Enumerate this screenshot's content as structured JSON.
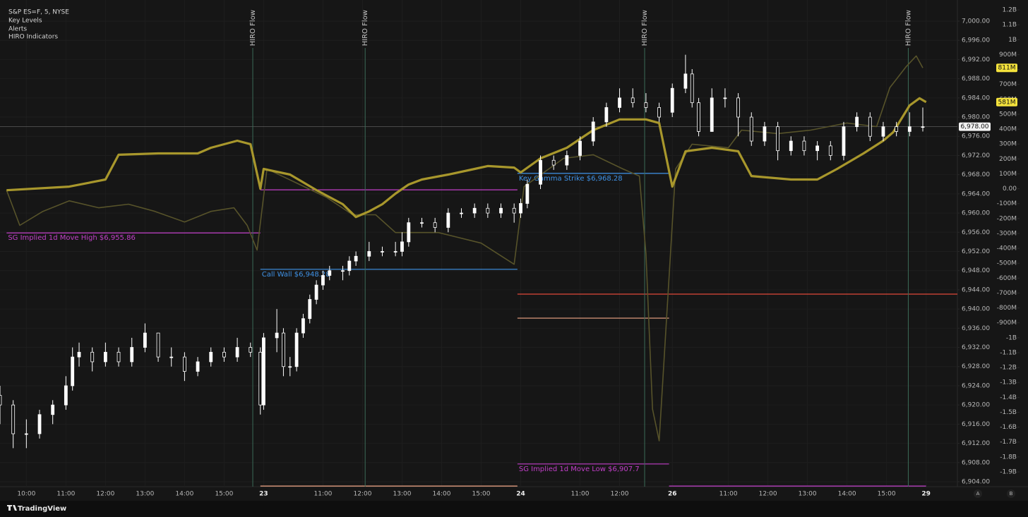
{
  "chart_data": {
    "type": "candlestick",
    "indicators": [
      "Key Levels",
      "Alerts",
      "HIRO Indicators"
    ],
    "grid": true,
    "xlim": [
      0,
      290.5
    ],
    "xticks": [
      {
        "value": 8,
        "label": "10:00"
      },
      {
        "value": 20,
        "label": "11:00"
      },
      {
        "value": 32,
        "label": "12:00"
      },
      {
        "value": 44,
        "label": "13:00"
      },
      {
        "value": 56,
        "label": "14:00"
      },
      {
        "value": 68,
        "label": "15:00"
      },
      {
        "value": 80,
        "label": "23"
      },
      {
        "value": 98,
        "label": "11:00"
      },
      {
        "value": 110,
        "label": "12:00"
      },
      {
        "value": 122,
        "label": "13:00"
      },
      {
        "value": 134,
        "label": "14:00"
      },
      {
        "value": 146,
        "label": "15:00"
      },
      {
        "value": 158,
        "label": "24"
      },
      {
        "value": 176,
        "label": "11:00"
      },
      {
        "value": 188,
        "label": "12:00"
      },
      {
        "value": 204,
        "label": "26"
      },
      {
        "value": 221,
        "label": "11:00"
      },
      {
        "value": 233,
        "label": "12:00"
      },
      {
        "value": 245,
        "label": "13:00"
      },
      {
        "value": 257,
        "label": "14:00"
      },
      {
        "value": 269,
        "label": "15:00"
      },
      {
        "value": 281,
        "label": "29"
      }
    ],
    "ylim": [
      6902.97,
      7004.41
    ],
    "yticks": [
      {
        "value": 6904,
        "label": "6,904.00"
      },
      {
        "value": 6908,
        "label": "6,908.00"
      },
      {
        "value": 6912,
        "label": "6,912.00"
      },
      {
        "value": 6916,
        "label": "6,916.00"
      },
      {
        "value": 6920,
        "label": "6,920.00"
      },
      {
        "value": 6924,
        "label": "6,924.00"
      },
      {
        "value": 6928,
        "label": "6,928.00"
      },
      {
        "value": 6932,
        "label": "6,932.00"
      },
      {
        "value": 6936,
        "label": "6,936.00"
      },
      {
        "value": 6940,
        "label": "6,940.00"
      },
      {
        "value": 6944,
        "label": "6,944.00"
      },
      {
        "value": 6948,
        "label": "6,948.00"
      },
      {
        "value": 6952,
        "label": "6,952.00"
      },
      {
        "value": 6956,
        "label": "6,956.00"
      },
      {
        "value": 6960,
        "label": "6,960.00"
      },
      {
        "value": 6964,
        "label": "6,964.00"
      },
      {
        "value": 6968,
        "label": "6,968.00"
      },
      {
        "value": 6972,
        "label": "6,972.00"
      },
      {
        "value": 6976,
        "label": "6,976.00"
      },
      {
        "value": 6980,
        "label": "6,980.00"
      },
      {
        "value": 6984,
        "label": "6,984.00"
      },
      {
        "value": 6988,
        "label": "6,988.00"
      },
      {
        "value": 6992,
        "label": "6,992.00"
      },
      {
        "value": 6996,
        "label": "6,996.00"
      },
      {
        "value": 7000,
        "label": "7,000.00"
      }
    ],
    "y2lim": [
      -1999.5,
      1266.4
    ],
    "y2ticks": [
      {
        "value": 1200,
        "label": "1.2B"
      },
      {
        "value": 1100,
        "label": "1.1B"
      },
      {
        "value": 1000,
        "label": "1B"
      },
      {
        "value": 900,
        "label": "900M"
      },
      {
        "value": 800,
        "label": "800M"
      },
      {
        "value": 700,
        "label": "700M"
      },
      {
        "value": 600,
        "label": "600M"
      },
      {
        "value": 500,
        "label": "500M"
      },
      {
        "value": 400,
        "label": "400M"
      },
      {
        "value": 300,
        "label": "300M"
      },
      {
        "value": 200,
        "label": "200M"
      },
      {
        "value": 100,
        "label": "100M"
      },
      {
        "value": 0,
        "label": "0.00"
      },
      {
        "value": -100,
        "label": "-100M"
      },
      {
        "value": -200,
        "label": "-200M"
      },
      {
        "value": -300,
        "label": "-300M"
      },
      {
        "value": -400,
        "label": "-400M"
      },
      {
        "value": -500,
        "label": "-500M"
      },
      {
        "value": -600,
        "label": "-600M"
      },
      {
        "value": -700,
        "label": "-700M"
      },
      {
        "value": -800,
        "label": "-800M"
      },
      {
        "value": -900,
        "label": "-900M"
      },
      {
        "value": -1000,
        "label": "-1B"
      },
      {
        "value": -1100,
        "label": "-1.1B"
      },
      {
        "value": -1200,
        "label": "-1.2B"
      },
      {
        "value": -1300,
        "label": "-1.3B"
      },
      {
        "value": -1400,
        "label": "-1.4B"
      },
      {
        "value": -1500,
        "label": "-1.5B"
      },
      {
        "value": -1600,
        "label": "-1.6B"
      },
      {
        "value": -1700,
        "label": "-1.7B"
      },
      {
        "value": -1800,
        "label": "-1.8B"
      },
      {
        "value": -1900,
        "label": "-1.9B"
      }
    ],
    "series": [
      {
        "type": "line",
        "axis": "y2",
        "color": "#57532a",
        "x": [
          2,
          6,
          13,
          21,
          30,
          39,
          47,
          56,
          64,
          71,
          75,
          78,
          81,
          90,
          99,
          107,
          114,
          120,
          133,
          146,
          156,
          159,
          171,
          180,
          189,
          194,
          196,
          198,
          200,
          205,
          210,
          221,
          225,
          236,
          246,
          257,
          266,
          270,
          275,
          278,
          280
        ],
        "values": [
          -10,
          -246,
          -152,
          -81,
          -128,
          -104,
          -152,
          -223,
          -152,
          -128,
          -246,
          -412,
          133,
          38,
          -57,
          -175,
          -175,
          -294,
          -294,
          -365,
          -507,
          14,
          204,
          228,
          133,
          85,
          -436,
          -1479,
          -1692,
          133,
          299,
          275,
          393,
          370,
          393,
          441,
          417,
          678,
          820,
          891,
          811
        ]
      },
      {
        "type": "line",
        "axis": "y2",
        "color": "#a8972c",
        "x": [
          2,
          21,
          32,
          36,
          48,
          60,
          64,
          72,
          76,
          79,
          80,
          88,
          96,
          104,
          108,
          112,
          116,
          120,
          124,
          128,
          136,
          144,
          148,
          156,
          158,
          164,
          172,
          180,
          188,
          196,
          200,
          204,
          208,
          216,
          224,
          228,
          240,
          248,
          254,
          262,
          268,
          271,
          276,
          279,
          281
        ],
        "values": [
          -10,
          14,
          62,
          228,
          237,
          237,
          275,
          322,
          299,
          0,
          133,
          95,
          -9,
          -104,
          -190,
          -152,
          -104,
          -33,
          28,
          62,
          95,
          133,
          152,
          142,
          109,
          204,
          275,
          393,
          465,
          465,
          441,
          14,
          251,
          275,
          251,
          85,
          62,
          62,
          133,
          237,
          322,
          379,
          559,
          607,
          581
        ]
      },
      {
        "type": "candlestick",
        "name": "S&P ES=F, 5, NYSE",
        "color": "#ffffff",
        "x": [
          0,
          4,
          8,
          12,
          16,
          20,
          22,
          24,
          28,
          32,
          36,
          40,
          44,
          48,
          52,
          56,
          60,
          64,
          68,
          72,
          76,
          79,
          80,
          84,
          86,
          88,
          90,
          92,
          94,
          96,
          98,
          100,
          104,
          106,
          108,
          112,
          116,
          120,
          122,
          124,
          128,
          132,
          136,
          140,
          144,
          148,
          152,
          156,
          158,
          160,
          164,
          168,
          172,
          176,
          180,
          184,
          188,
          192,
          196,
          200,
          204,
          208,
          210,
          212,
          216,
          220,
          224,
          228,
          232,
          236,
          240,
          244,
          248,
          252,
          256,
          260,
          264,
          268,
          272,
          276,
          280
        ],
        "open": [
          6922,
          6920,
          6914,
          6914,
          6918,
          6920,
          6924,
          6930,
          6931,
          6929,
          6931,
          6929,
          6932,
          6935,
          6930,
          6930,
          6927,
          6929,
          6931,
          6930,
          6932,
          6931,
          6920,
          6934,
          6935,
          6928,
          6928,
          6935,
          6938,
          6942,
          6945,
          6947,
          6948,
          6948,
          6950,
          6951,
          6952,
          6952,
          6952,
          6954,
          6958,
          6958,
          6957,
          6960,
          6960,
          6961,
          6960,
          6961,
          6960,
          6962,
          6966,
          6971,
          6970,
          6972,
          6975,
          6979,
          6982,
          6984,
          6983,
          6982,
          6981,
          6986,
          6989,
          6983,
          6977,
          6984,
          6984,
          6980,
          6975,
          6978,
          6973,
          6975,
          6973,
          6974,
          6972,
          6978,
          6980,
          6976,
          6978,
          6977,
          6978
        ],
        "high": [
          6924,
          6921,
          6917,
          6919,
          6921,
          6926,
          6932,
          6933,
          6932,
          6933,
          6932,
          6934,
          6937,
          6935,
          6932,
          6931,
          6930,
          6932,
          6932,
          6934,
          6933,
          6932,
          6935,
          6940,
          6936,
          6930,
          6936,
          6939,
          6943,
          6946,
          6948,
          6949,
          6949,
          6951,
          6952,
          6954,
          6953,
          6954,
          6956,
          6959,
          6959,
          6959,
          6961,
          6961,
          6962,
          6962,
          6962,
          6962,
          6963,
          6967,
          6972,
          6972,
          6973,
          6976,
          6980,
          6983,
          6986,
          6986,
          6985,
          6983,
          6987,
          6993,
          6990,
          6984,
          6986,
          6986,
          6985,
          6981,
          6979,
          6979,
          6976,
          6976,
          6975,
          6975,
          6979,
          6981,
          6981,
          6979,
          6979,
          6981,
          6982
        ],
        "low": [
          6916,
          6911,
          6911,
          6913,
          6916,
          6919,
          6923,
          6928,
          6927,
          6928,
          6928,
          6928,
          6931,
          6929,
          6928,
          6925,
          6926,
          6928,
          6929,
          6929,
          6930,
          6918,
          6919,
          6931,
          6926,
          6926,
          6927,
          6934,
          6937,
          6941,
          6944,
          6946,
          6946,
          6947,
          6949,
          6950,
          6951,
          6951,
          6951,
          6953,
          6957,
          6956,
          6956,
          6959,
          6959,
          6959,
          6959,
          6958,
          6959,
          6961,
          6965,
          6969,
          6969,
          6971,
          6974,
          6978,
          6981,
          6982,
          6981,
          6979,
          6980,
          6985,
          6982,
          6976,
          6977,
          6982,
          6976,
          6974,
          6974,
          6971,
          6972,
          6972,
          6971,
          6971,
          6971,
          6977,
          6975,
          6975,
          6976,
          6976,
          6977
        ],
        "close": [
          6920,
          6914,
          6914,
          6918,
          6920,
          6924,
          6930,
          6931,
          6929,
          6931,
          6929,
          6932,
          6935,
          6930,
          6930,
          6927,
          6929,
          6931,
          6930,
          6932,
          6931,
          6920,
          6934,
          6935,
          6928,
          6928,
          6935,
          6938,
          6942,
          6945,
          6947,
          6948,
          6948,
          6950,
          6951,
          6952,
          6952,
          6952,
          6954,
          6958,
          6958,
          6957,
          6960,
          6960,
          6961,
          6960,
          6961,
          6960,
          6962,
          6966,
          6971,
          6970,
          6972,
          6975,
          6979,
          6982,
          6984,
          6983,
          6982,
          6980,
          6986,
          6989,
          6983,
          6977,
          6984,
          6984,
          6980,
          6975,
          6978,
          6973,
          6975,
          6973,
          6974,
          6972,
          6978,
          6980,
          6976,
          6978,
          6977,
          6978,
          6978
        ]
      }
    ],
    "levels": [
      {
        "label": "SG Implied 1d Move High $6,955.86",
        "value": 6955.86,
        "x": [
          2,
          79
        ],
        "color": "#c23fc9"
      },
      {
        "label": "Call Wall $6,948.28",
        "value": 6948.28,
        "x": [
          79,
          157
        ],
        "color": "#3f93e8"
      },
      {
        "label": "Key Gamma Strike $6,968.28",
        "value": 6968.28,
        "x": [
          157,
          203
        ],
        "color": "#3f93e8"
      },
      {
        "label": "SG Implied 1d Move Low $6,907.7",
        "value": 6907.7,
        "x": [
          157,
          203
        ],
        "color": "#c23fc9"
      },
      {
        "value": 6964.85,
        "x": [
          79,
          157
        ],
        "color": "#c23fc9"
      },
      {
        "value": 6943.1,
        "x": [
          157,
          290.5
        ],
        "color": "#e0483a"
      },
      {
        "value": 6938.1,
        "x": [
          157,
          203
        ],
        "color": "#f0a585"
      },
      {
        "value": 6903.1,
        "x": [
          79,
          157
        ],
        "color": "#f0a585"
      },
      {
        "value": 6903.1,
        "x": [
          203,
          281
        ],
        "color": "#c23fc9"
      }
    ],
    "annotations": [
      {
        "x": 76.7,
        "label": "HIRO Flow"
      },
      {
        "x": 110.8,
        "label": "HIRO Flow"
      },
      {
        "x": 195.6,
        "label": "HIRO Flow"
      },
      {
        "x": 275.6,
        "label": "HIRO Flow"
      }
    ],
    "last_price": {
      "value": 6978,
      "label": "6,978.00"
    },
    "y2_tags": [
      {
        "value": 811,
        "label": "811M",
        "color": "#f4e23c"
      },
      {
        "value": 581,
        "label": "581M",
        "color": "#f4e23c"
      }
    ]
  },
  "footer": {
    "brand": "TradingView",
    "buttons": [
      "A",
      "B"
    ]
  }
}
